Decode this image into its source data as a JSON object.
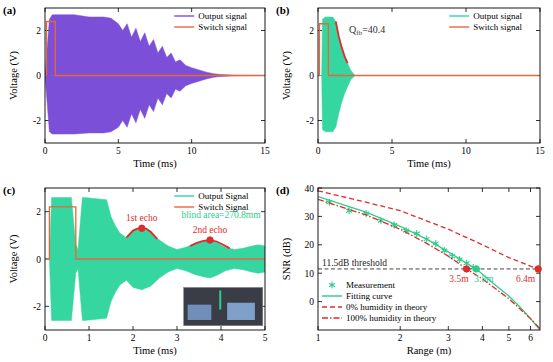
{
  "chart_data": [
    {
      "type": "line",
      "title": "(a)",
      "x_label": "Time (ms)",
      "y_label": "Voltage (V)",
      "xlim": [
        0,
        15
      ],
      "ylim": [
        -3,
        3
      ],
      "xticks": [
        0,
        5,
        10,
        15
      ],
      "yticks": [
        -2,
        0,
        2
      ],
      "grid": false,
      "legend": "upper right",
      "series": [
        {
          "name": "Output signal",
          "type": "area",
          "color": "#7b4fd8",
          "x": [
            0,
            0.3,
            0.5,
            1,
            2,
            3,
            4,
            4.5,
            5,
            5.3,
            5.6,
            5.9,
            6.2,
            6.5,
            6.8,
            7.1,
            7.4,
            7.7,
            8.0,
            8.3,
            8.6,
            8.9,
            9.2,
            9.6,
            10,
            10.5,
            11,
            11.5,
            12,
            13,
            15
          ],
          "values": [
            0,
            2.5,
            2.7,
            2.7,
            2.7,
            2.6,
            2.6,
            2.55,
            2.3,
            2.0,
            2.3,
            1.7,
            2.1,
            1.5,
            1.9,
            1.3,
            1.6,
            1.0,
            1.3,
            0.8,
            1.0,
            0.6,
            0.7,
            0.45,
            0.35,
            0.25,
            0.15,
            0.08,
            0.04,
            0.01,
            0
          ],
          "lower": [
            0,
            -2.5,
            -2.6,
            -2.6,
            -2.6,
            -2.55,
            -2.55,
            -2.5,
            -2.3,
            -2.0,
            -2.3,
            -1.7,
            -2.1,
            -1.5,
            -1.9,
            -1.3,
            -1.6,
            -1.0,
            -1.3,
            -0.8,
            -1.0,
            -0.6,
            -0.7,
            -0.45,
            -0.35,
            -0.25,
            -0.15,
            -0.08,
            -0.04,
            -0.01,
            0
          ]
        },
        {
          "name": "Switch signal",
          "type": "line",
          "color": "#e8663c",
          "line_style": "solid",
          "x": [
            0,
            0.1,
            0.1,
            0.7,
            0.7,
            15
          ],
          "values": [
            0,
            0,
            2.4,
            2.4,
            0,
            0
          ]
        }
      ]
    },
    {
      "type": "line",
      "title": "(b)",
      "x_label": "Time (ms)",
      "y_label": "Voltage (V)",
      "xlim": [
        0,
        15
      ],
      "ylim": [
        -3,
        3
      ],
      "xticks": [
        0,
        5,
        10,
        15
      ],
      "yticks": [
        -2,
        0,
        2
      ],
      "grid": false,
      "legend": "upper right",
      "series": [
        {
          "name": "Output signal",
          "type": "area",
          "color": "#36d6a0",
          "x": [
            0,
            0.25,
            0.3,
            0.5,
            0.8,
            1.0,
            1.2,
            1.4,
            1.6,
            1.8,
            2.0,
            2.2,
            2.5,
            15
          ],
          "values": [
            0,
            0,
            2.5,
            2.6,
            2.6,
            2.6,
            2.4,
            1.75,
            1.25,
            0.85,
            0.55,
            0.25,
            0,
            0
          ],
          "lower": [
            0,
            0,
            -2.4,
            -2.5,
            -2.5,
            -2.5,
            -2.3,
            -1.7,
            -1.2,
            -0.8,
            -0.5,
            -0.2,
            0,
            0
          ]
        },
        {
          "name": "Switch signal",
          "type": "line",
          "color": "#e8663c",
          "line_style": "solid",
          "x": [
            0,
            0.1,
            0.1,
            0.7,
            0.7,
            15
          ],
          "values": [
            0,
            0,
            2.3,
            2.3,
            0,
            0
          ]
        },
        {
          "type": "line",
          "color": "#e02b2b",
          "line_style": "solid",
          "x": [
            1.2,
            1.4,
            1.6,
            1.8,
            2.0
          ],
          "values": [
            2.4,
            1.75,
            1.25,
            0.85,
            0.55
          ]
        }
      ],
      "annotations": [
        {
          "text": "Q",
          "sub": "fb",
          "tail": "=40.4",
          "x": 2.1,
          "y": 1.9,
          "color": "#333333"
        }
      ]
    },
    {
      "type": "line",
      "title": "(c)",
      "x_label": "Time (ms)",
      "y_label": "Voltage (V)",
      "xlim": [
        0,
        5
      ],
      "ylim": [
        -3,
        3
      ],
      "xticks": [
        0,
        1,
        2,
        3,
        4,
        5
      ],
      "yticks": [
        -2,
        0,
        2
      ],
      "grid": false,
      "legend": "upper right",
      "series": [
        {
          "name": "Output Signal",
          "type": "area",
          "color": "#36d6a0",
          "x": [
            0,
            0.1,
            0.15,
            0.6,
            0.7,
            0.75,
            0.85,
            0.9,
            1.4,
            1.5,
            1.6,
            1.7,
            1.85,
            2.0,
            2.2,
            2.4,
            2.6,
            2.8,
            3.0,
            3.2,
            3.4,
            3.6,
            3.75,
            3.9,
            4.1,
            4.3,
            4.5,
            4.7,
            4.85,
            5.0
          ],
          "values": [
            0,
            0,
            2.6,
            2.6,
            0.6,
            0.4,
            2.6,
            2.6,
            2.5,
            1.8,
            1.4,
            1.1,
            0.9,
            1.2,
            1.3,
            1.15,
            0.8,
            0.55,
            0.4,
            0.5,
            0.65,
            0.75,
            0.8,
            0.7,
            0.5,
            0.4,
            0.45,
            0.55,
            0.6,
            0.55
          ],
          "lower": [
            0,
            0,
            -2.6,
            -2.6,
            -0.6,
            -0.4,
            -2.6,
            -2.6,
            -2.5,
            -1.8,
            -1.4,
            -1.1,
            -0.9,
            -1.2,
            -1.3,
            -1.15,
            -0.8,
            -0.55,
            -0.4,
            -0.5,
            -0.65,
            -0.75,
            -0.8,
            -0.7,
            -0.5,
            -0.4,
            -0.45,
            -0.55,
            -0.6,
            -0.55
          ]
        },
        {
          "name": "Switch Signal",
          "type": "line",
          "color": "#e8663c",
          "line_style": "solid",
          "x": [
            0,
            0.1,
            0.1,
            0.7,
            0.7,
            5
          ],
          "values": [
            0,
            0,
            2.2,
            2.2,
            0,
            0
          ]
        },
        {
          "type": "line",
          "color": "#e02b2b",
          "line_style": "solid",
          "x": [
            1.85,
            2.0,
            2.1,
            2.2,
            2.3,
            2.4,
            2.55
          ],
          "values": [
            0.9,
            1.2,
            1.28,
            1.3,
            1.28,
            1.15,
            0.85
          ]
        },
        {
          "type": "line",
          "color": "#e02b2b",
          "line_style": "solid",
          "x": [
            3.3,
            3.45,
            3.6,
            3.75,
            3.9,
            4.05,
            4.2
          ],
          "values": [
            0.55,
            0.68,
            0.77,
            0.8,
            0.74,
            0.6,
            0.45
          ]
        }
      ],
      "points": [
        {
          "x": 2.2,
          "y": 1.3,
          "color": "#e02b2b"
        },
        {
          "x": 3.75,
          "y": 0.8,
          "color": "#e02b2b"
        }
      ],
      "annotations": [
        {
          "text": "1st echo",
          "x": 2.2,
          "y": 1.6,
          "color": "#e02b2b"
        },
        {
          "text": "2nd echo",
          "x": 3.75,
          "y": 1.1,
          "color": "#e02b2b"
        },
        {
          "text": "blind area=270.8mm",
          "x": 4.0,
          "y": 1.75,
          "color": "#2ecc8f"
        }
      ]
    },
    {
      "type": "line",
      "title": "(d)",
      "x_label": "Range (m)",
      "y_label": "SNR (dB)",
      "log": "x",
      "xlim": [
        1,
        6.5
      ],
      "ylim": [
        -10,
        40
      ],
      "xticks": [
        1,
        2,
        3,
        4,
        5,
        6
      ],
      "yticks": [
        0,
        10,
        20,
        30,
        40
      ],
      "grid": false,
      "legend": "lower left",
      "series": [
        {
          "name": "Measurement",
          "type": "scatter",
          "marker": "asterisk",
          "color": "#2ecc8f",
          "x": [
            1.1,
            1.3,
            1.5,
            1.7,
            1.9,
            2.1,
            2.3,
            2.5,
            2.7,
            2.9,
            3.1,
            3.3,
            3.5,
            3.7
          ],
          "values": [
            35,
            32,
            31,
            28.5,
            27,
            25,
            24,
            22,
            20.5,
            18,
            16,
            14.8,
            13.5,
            12
          ]
        },
        {
          "name": "Fitting curve",
          "type": "line",
          "line_style": "solid",
          "color": "#2ecc8f",
          "x": [
            1,
            1.5,
            2,
            2.5,
            3,
            3.5,
            3.8,
            4.5,
            5,
            5.5,
            6,
            6.5
          ],
          "values": [
            37,
            31.5,
            26.5,
            22,
            17.5,
            13.5,
            11.5,
            5.5,
            2,
            -2,
            -6,
            -10
          ]
        },
        {
          "name": "0% humidity in theory",
          "type": "line",
          "line_style": "dashed",
          "color": "#e02b2b",
          "x": [
            1,
            1.5,
            2,
            3,
            4,
            5,
            6,
            6.4,
            6.5
          ],
          "values": [
            39,
            35,
            32,
            25.5,
            20,
            15.5,
            12.5,
            11.5,
            11
          ]
        },
        {
          "name": "100% humidity in theory",
          "type": "line",
          "line_style": "dashdot",
          "color": "#e02b2b",
          "x": [
            1,
            1.5,
            2,
            2.5,
            3,
            3.5,
            4,
            5,
            6,
            6.5
          ],
          "values": [
            36,
            30.5,
            25.5,
            20.5,
            16,
            11.5,
            8,
            1,
            -6,
            -9.5
          ]
        }
      ],
      "threshold": {
        "value": 11.5,
        "label": "11.5dB threshold"
      },
      "points": [
        {
          "x": 3.5,
          "y": 11.5,
          "color": "#e02b2b",
          "label": "3.5m"
        },
        {
          "x": 3.8,
          "y": 11.5,
          "color": "#2ecc8f",
          "label": "3.8m"
        },
        {
          "x": 6.4,
          "y": 11.5,
          "color": "#e02b2b",
          "label": "6.4m"
        }
      ]
    }
  ]
}
